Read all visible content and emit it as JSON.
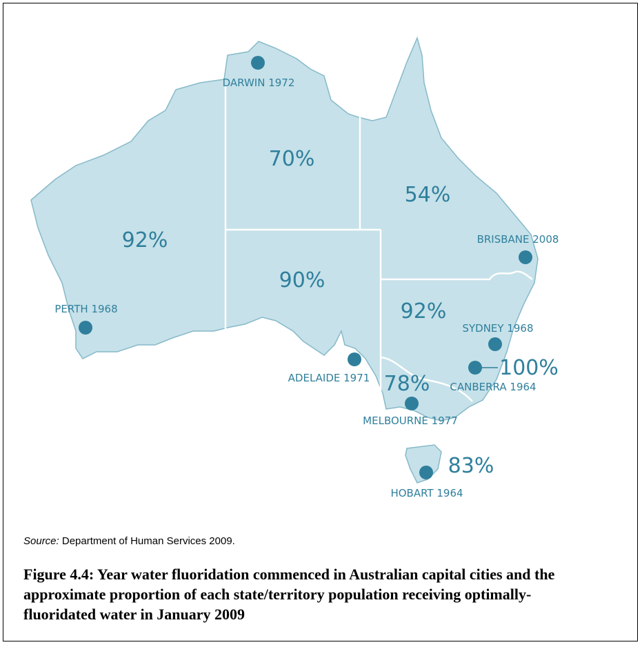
{
  "regions": [
    {
      "label": "70%"
    },
    {
      "label": "54%"
    },
    {
      "label": "92%"
    },
    {
      "label": "90%"
    },
    {
      "label": "92%"
    },
    {
      "label": "78%"
    },
    {
      "label": "100%"
    },
    {
      "label": "83%"
    }
  ],
  "cities": [
    {
      "label": "DARWIN 1972"
    },
    {
      "label": "BRISBANE 2008"
    },
    {
      "label": "PERTH 1968"
    },
    {
      "label": "SYDNEY 1968"
    },
    {
      "label": "ADELAIDE 1971"
    },
    {
      "label": "CANBERRA 1964"
    },
    {
      "label": "MELBOURNE 1977"
    },
    {
      "label": "HOBART 1964"
    }
  ],
  "source": {
    "prefix": "Source:",
    "text": "Department of Human Services 2009."
  },
  "caption": "Figure 4.4: Year water fluoridation commenced in Australian capital cities and the approximate proportion of each state/territory population receiving optimally-fluoridated water in January 2009"
}
